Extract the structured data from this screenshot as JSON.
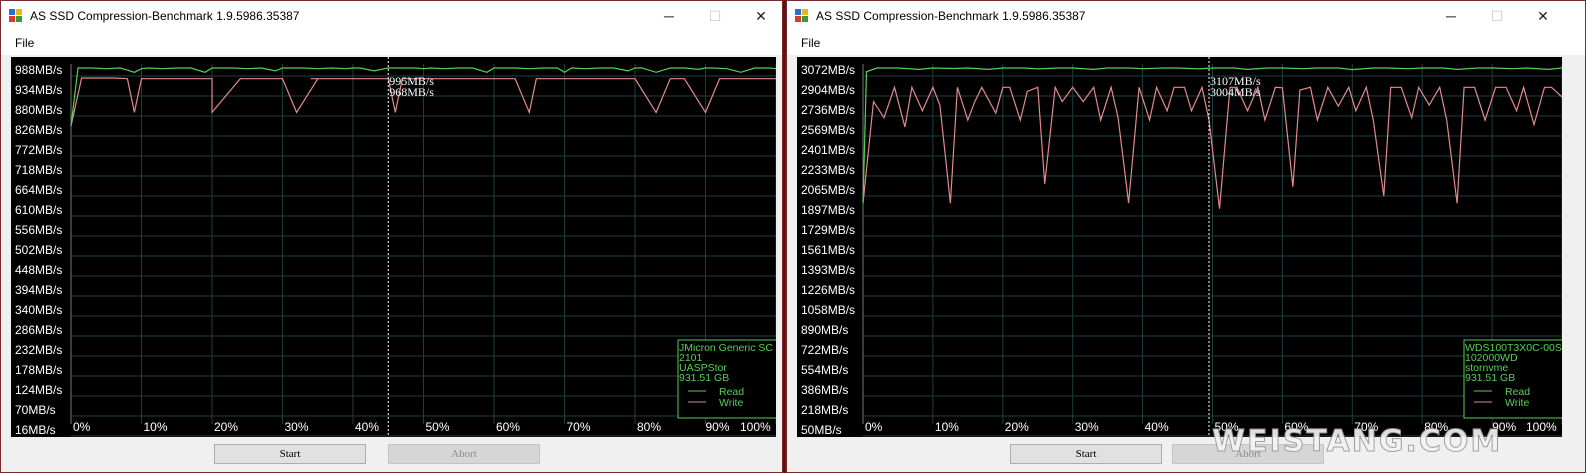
{
  "windows": [
    {
      "title": "AS SSD Compression-Benchmark 1.9.5986.35387",
      "menu": [
        "File"
      ],
      "buttons": {
        "start": "Start",
        "abort": "Abort"
      },
      "chart_data": {
        "type": "line",
        "y_ticks": [
          "988MB/s",
          "934MB/s",
          "880MB/s",
          "826MB/s",
          "772MB/s",
          "718MB/s",
          "664MB/s",
          "610MB/s",
          "556MB/s",
          "502MB/s",
          "448MB/s",
          "394MB/s",
          "340MB/s",
          "286MB/s",
          "232MB/s",
          "178MB/s",
          "124MB/s",
          "70MB/s",
          "16MB/s"
        ],
        "x_ticks": [
          "0%",
          "10%",
          "20%",
          "30%",
          "40%",
          "50%",
          "60%",
          "70%",
          "80%",
          "90%",
          "100%"
        ],
        "ylim": [
          16,
          988
        ],
        "series": [
          {
            "name": "Read",
            "color": "#55d155",
            "x": [
              0,
              1,
              3,
              5,
              7,
              9,
              10,
              11,
              13,
              15,
              17,
              19,
              20,
              21,
              23,
              25,
              27,
              29,
              30,
              31,
              33,
              35,
              37,
              39,
              40,
              41,
              43,
              45,
              47,
              49,
              50,
              51,
              53,
              55,
              57,
              59,
              60,
              61,
              63,
              65,
              67,
              69,
              70,
              71,
              73,
              75,
              77,
              79,
              80,
              81,
              83,
              85,
              87,
              89,
              90,
              91,
              93,
              95,
              97,
              99,
              100
            ],
            "y": [
              826,
              988,
              988,
              986,
              988,
              976,
              986,
              988,
              986,
              988,
              988,
              976,
              988,
              988,
              988,
              986,
              988,
              980,
              988,
              988,
              988,
              986,
              988,
              986,
              988,
              988,
              980,
              988,
              988,
              988,
              986,
              988,
              986,
              988,
              988,
              976,
              988,
              988,
              988,
              986,
              988,
              988,
              976,
              988,
              986,
              988,
              988,
              980,
              988,
              988,
              976,
              988,
              988,
              984,
              988,
              988,
              986,
              976,
              988,
              988,
              986
            ]
          },
          {
            "name": "Write",
            "color": "#e48a8a",
            "x": [
              0,
              1.5,
              6,
              8,
              9,
              10,
              20,
              20,
              24,
              25,
              27,
              30,
              32,
              35,
              34,
              36,
              45,
              46,
              47,
              48,
              51,
              63,
              65,
              66,
              67,
              80,
              83,
              85,
              87,
              90,
              92,
              94,
              95,
              96,
              97,
              100
            ],
            "y": [
              826,
              960,
              960,
              958,
              864,
              958,
              958,
              864,
              958,
              958,
              958,
              958,
              864,
              958,
              958,
              958,
              958,
              864,
              958,
              958,
              958,
              958,
              864,
              958,
              958,
              958,
              864,
              958,
              958,
              864,
              958,
              958,
              958,
              958,
              958,
              958
            ]
          }
        ],
        "marker": {
          "x_percent": 45,
          "read_label": "995MB/s",
          "write_label": "968MB/s"
        },
        "legend": {
          "lines": [
            "JMicron Generic SC",
            "2101",
            "UASPStor",
            "931.51 GB"
          ],
          "read": "Read",
          "write": "Write"
        }
      }
    },
    {
      "title": "AS SSD Compression-Benchmark 1.9.5986.35387",
      "menu": [
        "File"
      ],
      "buttons": {
        "start": "Start",
        "abort": "Abort"
      },
      "chart_data": {
        "type": "line",
        "y_ticks": [
          "3072MB/s",
          "2904MB/s",
          "2736MB/s",
          "2569MB/s",
          "2401MB/s",
          "2233MB/s",
          "2065MB/s",
          "1897MB/s",
          "1729MB/s",
          "1561MB/s",
          "1393MB/s",
          "1226MB/s",
          "1058MB/s",
          "890MB/s",
          "722MB/s",
          "554MB/s",
          "386MB/s",
          "218MB/s",
          "50MB/s"
        ],
        "x_ticks": [
          "0%",
          "10%",
          "20%",
          "30%",
          "40%",
          "50%",
          "60%",
          "70%",
          "80%",
          "90%",
          "100%"
        ],
        "ylim": [
          50,
          3072
        ],
        "series": [
          {
            "name": "Read",
            "color": "#55d155",
            "x": [
              0,
              0.5,
              2,
              5,
              8,
              10,
              13,
              15,
              18,
              20,
              23,
              25,
              28,
              30,
              33,
              35,
              38,
              40,
              43,
              45,
              48,
              50,
              53,
              55,
              58,
              60,
              63,
              65,
              68,
              70,
              73,
              75,
              78,
              80,
              83,
              85,
              88,
              90,
              93,
              95,
              98,
              100
            ],
            "y": [
              1900,
              3040,
              3072,
              3072,
              3060,
              3072,
              3068,
              3072,
              3060,
              3072,
              3072,
              3064,
              3072,
              3072,
              3060,
              3072,
              3072,
              3066,
              3072,
              3072,
              3064,
              3072,
              3072,
              3060,
              3072,
              3072,
              3066,
              3072,
              3072,
              3058,
              3072,
              3072,
              3066,
              3072,
              3072,
              3060,
              3072,
              3072,
              3066,
              3072,
              3060,
              3072
            ]
          },
          {
            "name": "Write",
            "color": "#e48a8a",
            "x": [
              0,
              1.5,
              3,
              4.5,
              6,
              7,
              8.5,
              10,
              11,
              12.5,
              13.5,
              15,
              16,
              17,
              19,
              20,
              21,
              22.5,
              23.5,
              25,
              26,
              27.5,
              28.5,
              30,
              31.5,
              33,
              34,
              35.5,
              36.5,
              38,
              39.5,
              41,
              42,
              43.5,
              44.5,
              46,
              47,
              48.5,
              49.5,
              51,
              52.5,
              53.5,
              55,
              56.5,
              57.5,
              59,
              60,
              61.5,
              62.5,
              64,
              65,
              66.5,
              68,
              69.5,
              70.5,
              72,
              73,
              74.5,
              75.5,
              77,
              78.5,
              79.5,
              81,
              82.5,
              83.5,
              85,
              86,
              87.5,
              89,
              90.5,
              92,
              93.5,
              94.5,
              96,
              97.5,
              98.5,
              100
            ],
            "y": [
              1897,
              2780,
              2640,
              2904,
              2560,
              2904,
              2700,
              2904,
              2750,
              1897,
              2904,
              2620,
              2780,
              2904,
              2680,
              2904,
              2904,
              2620,
              2870,
              2904,
              2065,
              2904,
              2780,
              2904,
              2780,
              2904,
              2620,
              2904,
              2640,
              1900,
              2904,
              2620,
              2904,
              2700,
              2904,
              2904,
              2700,
              2904,
              2620,
              1850,
              2904,
              2904,
              2700,
              2904,
              2620,
              2904,
              2900,
              2040,
              2880,
              2904,
              2620,
              2904,
              2740,
              2904,
              2700,
              2904,
              2620,
              1960,
              2904,
              2904,
              2640,
              2904,
              2750,
              2904,
              2620,
              1897,
              2904,
              2904,
              2620,
              2904,
              2904,
              2700,
              2904,
              2580,
              2904,
              2904,
              2820
            ]
          }
        ],
        "marker": {
          "x_percent": 49.5,
          "read_label": "3107MB/s",
          "write_label": "3004MB/s"
        },
        "legend": {
          "lines": [
            "WDS100T3X0C-00S",
            "102000WD",
            "stornvme",
            "931.51 GB"
          ],
          "read": "Read",
          "write": "Write"
        }
      }
    }
  ],
  "watermark": "WEISTANG.COM",
  "colors": {
    "background": "#000000",
    "grid": "#1f3f3f",
    "text": "#ffffff",
    "legend_border": "#55d155",
    "frame": "#5a1414"
  }
}
